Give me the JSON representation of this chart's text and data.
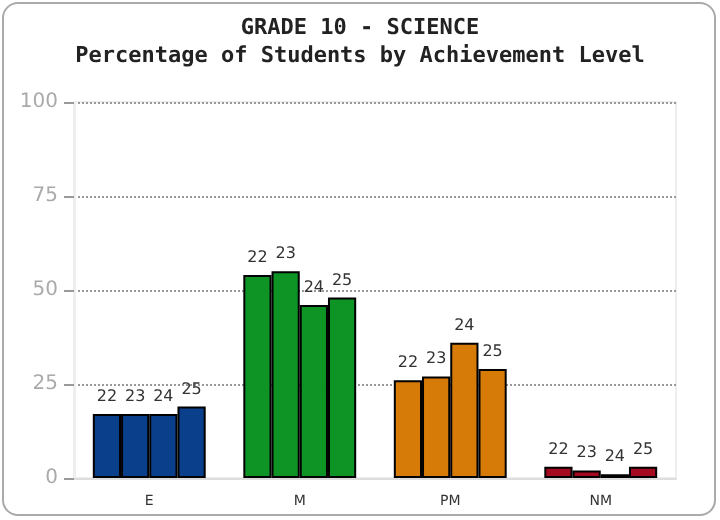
{
  "chart_data": {
    "type": "bar",
    "title": "GRADE 10 - SCIENCE",
    "subtitle": "Percentage of Students by Achievement Level",
    "categories": [
      "E",
      "M",
      "PM",
      "NM"
    ],
    "series": [
      {
        "name": "22",
        "colors": [
          "#0a3f8c",
          "#0d9425",
          "#d67b07",
          "#a3091f"
        ],
        "values": [
          17,
          54,
          26,
          3
        ]
      },
      {
        "name": "23",
        "colors": [
          "#0a3f8c",
          "#0d9425",
          "#d67b07",
          "#a3091f"
        ],
        "values": [
          17,
          55,
          27,
          2
        ]
      },
      {
        "name": "24",
        "colors": [
          "#0a3f8c",
          "#0d9425",
          "#d67b07",
          "#a3091f"
        ],
        "values": [
          17,
          46,
          36,
          1
        ]
      },
      {
        "name": "25",
        "colors": [
          "#0a3f8c",
          "#0d9425",
          "#d67b07",
          "#a3091f"
        ],
        "values": [
          19,
          48,
          29,
          3
        ]
      }
    ],
    "ylim": [
      0,
      100
    ],
    "yticks": [
      0,
      25,
      50,
      75,
      100
    ],
    "grid": "y",
    "legend": false
  }
}
